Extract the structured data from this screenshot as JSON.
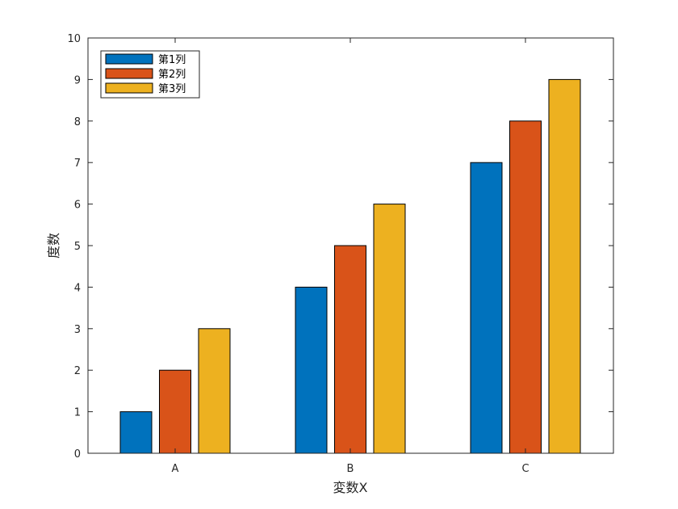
{
  "chart_data": {
    "type": "bar",
    "title": "",
    "xlabel": "変数X",
    "ylabel": "度数",
    "categories": [
      "A",
      "B",
      "C"
    ],
    "ylim": [
      0,
      10
    ],
    "yticks": [
      0,
      1,
      2,
      3,
      4,
      5,
      6,
      7,
      8,
      9,
      10
    ],
    "grid": false,
    "legend_position": "top-left",
    "series": [
      {
        "name": "第1列",
        "values": [
          1,
          4,
          7
        ],
        "color": "#0072BD"
      },
      {
        "name": "第2列",
        "values": [
          2,
          5,
          8
        ],
        "color": "#D95319"
      },
      {
        "name": "第3列",
        "values": [
          3,
          6,
          9
        ],
        "color": "#EDB120"
      }
    ]
  }
}
